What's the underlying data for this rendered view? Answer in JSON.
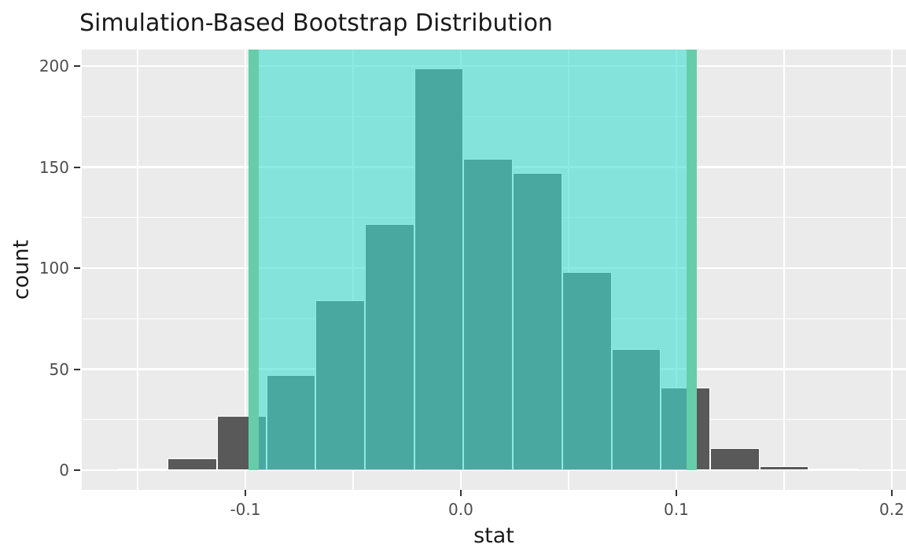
{
  "title": "Simulation-Based Bootstrap Distribution",
  "axes": {
    "x_label": "stat",
    "y_label": "count"
  },
  "chart_data": {
    "type": "bar",
    "subtype": "histogram",
    "title": "Simulation-Based Bootstrap Distribution",
    "xlabel": "stat",
    "ylabel": "count",
    "grid": true,
    "legend": false,
    "x_ticks": [
      {
        "value": -0.1,
        "label": "-0.1"
      },
      {
        "value": 0.0,
        "label": "0.0"
      },
      {
        "value": 0.1,
        "label": "0.1"
      },
      {
        "value": 0.2,
        "label": "0.2"
      }
    ],
    "y_ticks": [
      {
        "value": 0,
        "label": "0"
      },
      {
        "value": 50,
        "label": "50"
      },
      {
        "value": 100,
        "label": "100"
      },
      {
        "value": 150,
        "label": "150"
      },
      {
        "value": 200,
        "label": "200"
      }
    ],
    "x_domain": [
      -0.1759,
      0.2066
    ],
    "y_domain": [
      -9.7,
      208.2
    ],
    "bin_width": 0.0229,
    "bin_centers": [
      -0.1475,
      -0.1246,
      -0.1017,
      -0.0788,
      -0.0559,
      -0.0331,
      -0.0102,
      0.0127,
      0.0356,
      0.0585,
      0.0814,
      0.1042,
      0.1271,
      0.15,
      0.1729
    ],
    "counts": [
      1,
      6,
      27,
      47,
      84,
      122,
      199,
      154,
      147,
      98,
      60,
      41,
      11,
      2,
      1
    ],
    "n_replicates": 1000,
    "confidence_interval": {
      "lower": -0.096,
      "upper": 0.107
    },
    "colors": {
      "panel_bg": "#EBEBEB",
      "gridline": "#FFFFFF",
      "bar_fill": "#595959",
      "bar_border": "#FFFFFF",
      "ci_shade_fill": "#40E0D0",
      "ci_shade_alpha": 0.6,
      "ci_line": "#66CDAA",
      "tick_mark": "#333333",
      "tick_text": "#4D4D4D",
      "title_text": "#1A1A1A"
    }
  }
}
